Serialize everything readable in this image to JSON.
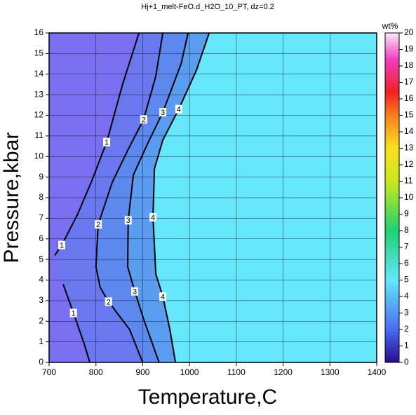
{
  "chart_data": {
    "type": "contour",
    "title": "Hj+1_melt-FeO.d_H2O_10_PT, dz=0.2",
    "x_label": "Temperature,C",
    "y_label": "Pressure,kbar",
    "xlim": [
      700,
      1400
    ],
    "xticks": [
      700,
      800,
      900,
      1000,
      1100,
      1200,
      1300,
      1400
    ],
    "ylim": [
      0,
      16
    ],
    "yticks": [
      0,
      1,
      2,
      3,
      4,
      5,
      6,
      7,
      8,
      9,
      10,
      11,
      12,
      13,
      14,
      15,
      16
    ],
    "grid": true,
    "background_color": "#66e6fb",
    "colorbar": {
      "label": "wt%",
      "lim": [
        0,
        20
      ],
      "ticks": [
        0,
        1,
        2,
        3,
        4,
        5,
        6,
        7,
        8,
        9,
        10,
        11,
        12,
        13,
        14,
        15,
        16,
        17,
        18,
        19,
        20
      ]
    },
    "contours": [
      {
        "level": 4,
        "color": "#5a9df0",
        "x": [
          1042,
          1015,
          977,
          943,
          925,
          922,
          928,
          943,
          958,
          970
        ],
        "y": [
          16,
          14.2,
          12.3,
          10.8,
          9.4,
          7.05,
          4.3,
          3.2,
          1.6,
          0
        ]
      },
      {
        "level": 3,
        "color": "#5d88ee",
        "x": [
          997,
          982,
          943,
          910,
          880,
          869,
          868,
          883,
          902,
          935
        ],
        "y": [
          16,
          14.5,
          12.15,
          10.6,
          9.1,
          6.9,
          4.65,
          3.45,
          2.1,
          0
        ]
      },
      {
        "level": 2,
        "color": "#6a78ef",
        "x": [
          943,
          928,
          902,
          868,
          835,
          805,
          800,
          809,
          827,
          872,
          900
        ],
        "y": [
          16,
          13.9,
          11.8,
          10.3,
          8.75,
          6.7,
          4.65,
          3.65,
          2.95,
          1.6,
          0
        ]
      },
      {
        "level": 1,
        "color": "#7a6ff1",
        "x": [
          892,
          857,
          823,
          790,
          760,
          727,
          712,
          null,
          730,
          752,
          775,
          787
        ],
        "y": [
          16,
          13.5,
          10.7,
          8.75,
          7.15,
          5.7,
          5.2,
          null,
          3.8,
          2.4,
          0.9,
          0
        ]
      }
    ]
  }
}
